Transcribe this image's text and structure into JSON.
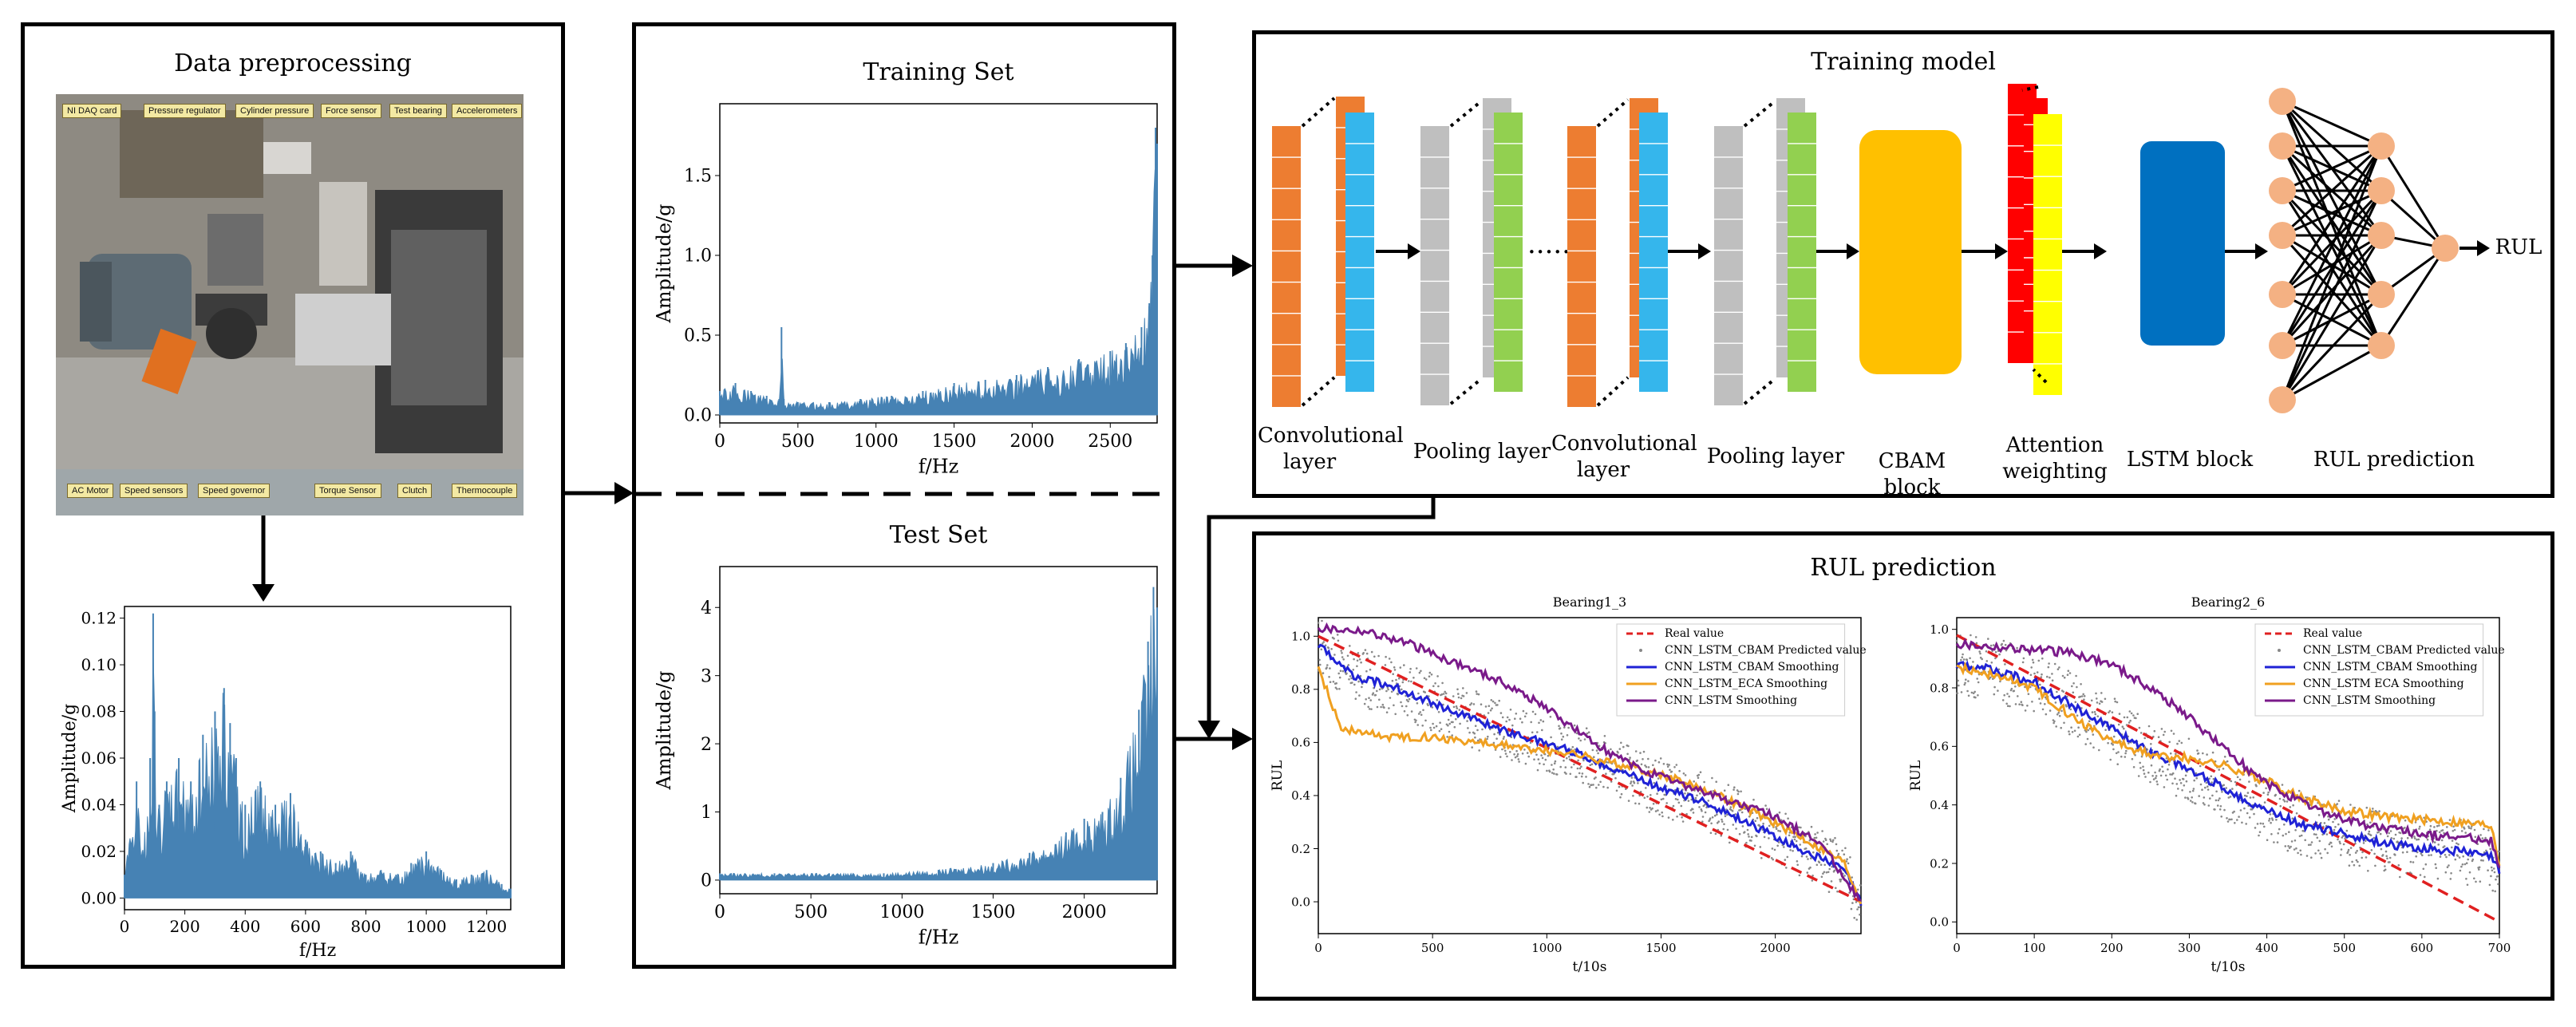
{
  "preprocessing": {
    "title": "Data preprocessing",
    "photo_labels": {
      "ni_daq": "NI DAQ card",
      "pressure_regulator": "Pressure regulator",
      "cylinder_pressure": "Cylinder pressure",
      "force_sensor": "Force sensor",
      "test_bearing": "Test bearing",
      "accelerometers": "Accelerometers",
      "ac_motor": "AC Motor",
      "speed_sensors": "Speed sensors",
      "speed_governor": "Speed governor",
      "torque_sensor": "Torque Sensor",
      "clutch": "Clutch",
      "thermocouple": "Thermocouple"
    }
  },
  "training_model": {
    "title": "Training model",
    "labels": {
      "conv1": "Convolutional layer",
      "pool1": "Pooling layer",
      "conv2": "Convolutional layer",
      "pool2": "Pooling layer",
      "cbam": "CBAM block",
      "attention": "Attention weighting",
      "lstm": "LSTM block",
      "rul_pred": "RUL prediction",
      "rul_out": "RUL",
      "dots": "······"
    },
    "colors": {
      "conv_orange": "#ed7d31",
      "conv_blue": "#35b6ec",
      "pool_grey": "#bfbfbf",
      "pool_green": "#92d050",
      "cbam": "#ffc000",
      "attn_red": "#ff0000",
      "attn_yellow": "#ffff00",
      "lstm": "#0070c0",
      "neuron": "#f4b183"
    }
  },
  "rul_panel": {
    "title": "RUL prediction"
  },
  "chart_data": [
    {
      "id": "spectrum_preprocessing",
      "type": "line",
      "title": "",
      "xlabel": "f/Hz",
      "ylabel": "Amplitude/g",
      "xlim": [
        0,
        1280
      ],
      "ylim": [
        -0.005,
        0.125
      ],
      "xticks": [
        0,
        200,
        400,
        600,
        800,
        1000,
        1200
      ],
      "yticks": [
        0.0,
        0.02,
        0.04,
        0.06,
        0.08,
        0.1,
        0.12
      ],
      "ytick_labels": [
        "0.00",
        "0.02",
        "0.04",
        "0.06",
        "0.08",
        "0.10",
        "0.12"
      ],
      "color": "#4682b4",
      "x": [
        0,
        40,
        60,
        85,
        95,
        100,
        115,
        140,
        180,
        220,
        260,
        300,
        330,
        350,
        370,
        400,
        450,
        500,
        550,
        600,
        650,
        700,
        750,
        800,
        850,
        900,
        950,
        1000,
        1050,
        1100,
        1150,
        1200,
        1250,
        1280
      ],
      "values": [
        0.01,
        0.05,
        0.02,
        0.06,
        0.122,
        0.08,
        0.04,
        0.05,
        0.06,
        0.05,
        0.07,
        0.08,
        0.09,
        0.075,
        0.06,
        0.04,
        0.05,
        0.04,
        0.045,
        0.025,
        0.02,
        0.015,
        0.02,
        0.01,
        0.012,
        0.01,
        0.015,
        0.02,
        0.012,
        0.008,
        0.01,
        0.012,
        0.006,
        0.004
      ]
    },
    {
      "id": "training_set",
      "type": "line",
      "title": "Training Set",
      "xlabel": "f/Hz",
      "ylabel": "Amplitude/g",
      "xlim": [
        0,
        2800
      ],
      "ylim": [
        -0.05,
        1.95
      ],
      "xticks": [
        0,
        500,
        1000,
        1500,
        2000,
        2500
      ],
      "yticks": [
        0.0,
        0.5,
        1.0,
        1.5
      ],
      "ytick_labels": [
        "0.0",
        "0.5",
        "1.0",
        "1.5"
      ],
      "color": "#4682b4",
      "x": [
        0,
        100,
        200,
        300,
        380,
        395,
        410,
        500,
        700,
        900,
        1100,
        1300,
        1500,
        1700,
        1900,
        2100,
        2300,
        2500,
        2600,
        2700,
        2750,
        2770,
        2790,
        2800
      ],
      "values": [
        0.15,
        0.2,
        0.15,
        0.12,
        0.1,
        0.55,
        0.1,
        0.08,
        0.08,
        0.1,
        0.12,
        0.15,
        0.2,
        0.22,
        0.25,
        0.3,
        0.35,
        0.4,
        0.45,
        0.55,
        0.7,
        1.0,
        1.8,
        1.7
      ]
    },
    {
      "id": "test_set",
      "type": "line",
      "title": "Test Set",
      "xlabel": "f/Hz",
      "ylabel": "Amplitude/g",
      "xlim": [
        0,
        2400
      ],
      "ylim": [
        -0.2,
        4.6
      ],
      "xticks": [
        0,
        500,
        1000,
        1500,
        2000
      ],
      "yticks": [
        0,
        1,
        2,
        3,
        4
      ],
      "ytick_labels": [
        "0",
        "1",
        "2",
        "3",
        "4"
      ],
      "color": "#4682b4",
      "x": [
        0,
        300,
        600,
        900,
        1200,
        1500,
        1700,
        1900,
        2000,
        2100,
        2200,
        2300,
        2350,
        2380,
        2400
      ],
      "values": [
        0.1,
        0.1,
        0.1,
        0.1,
        0.15,
        0.25,
        0.4,
        0.7,
        0.9,
        1.0,
        1.5,
        2.5,
        3.5,
        4.3,
        4.0
      ]
    },
    {
      "id": "bearing1_3",
      "type": "line",
      "title": "Bearing1_3",
      "xlabel": "t/10s",
      "ylabel": "RUL",
      "xlim": [
        0,
        2375
      ],
      "ylim": [
        -0.12,
        1.07
      ],
      "xticks": [
        0,
        500,
        1000,
        1500,
        2000
      ],
      "yticks": [
        0.0,
        0.2,
        0.4,
        0.6,
        0.8,
        1.0
      ],
      "ytick_labels": [
        "0.0",
        "0.2",
        "0.4",
        "0.6",
        "0.8",
        "1.0"
      ],
      "series": [
        {
          "name": "Real value",
          "color": "#e02020",
          "dash": "14,8",
          "x": [
            0,
            2375
          ],
          "values": [
            1.0,
            0.0
          ]
        },
        {
          "name": "CNN_LSTM_CBAM Predicted value",
          "color": "#888888",
          "kind": "scatter"
        },
        {
          "name": "CNN_LSTM_CBAM Smoothing",
          "color": "#1f22d6",
          "x": [
            0,
            150,
            300,
            500,
            700,
            900,
            1100,
            1300,
            1500,
            1700,
            1900,
            2100,
            2300,
            2375
          ],
          "values": [
            0.97,
            0.85,
            0.82,
            0.75,
            0.68,
            0.62,
            0.57,
            0.5,
            0.43,
            0.37,
            0.29,
            0.2,
            0.12,
            0.0
          ]
        },
        {
          "name": "CNN_LSTM_ECA Smoothing",
          "color": "#f0a020",
          "x": [
            0,
            100,
            300,
            500,
            700,
            900,
            1100,
            1300,
            1500,
            1700,
            1900,
            2100,
            2300,
            2375
          ],
          "values": [
            0.88,
            0.65,
            0.62,
            0.62,
            0.6,
            0.58,
            0.56,
            0.52,
            0.48,
            0.42,
            0.34,
            0.25,
            0.15,
            0.0
          ]
        },
        {
          "name": "CNN_LSTM Smoothing",
          "color": "#7a1a8a",
          "x": [
            0,
            200,
            400,
            600,
            800,
            1000,
            1200,
            1400,
            1600,
            1800,
            2000,
            2200,
            2375
          ],
          "values": [
            1.03,
            1.02,
            0.97,
            0.9,
            0.83,
            0.73,
            0.6,
            0.5,
            0.44,
            0.38,
            0.32,
            0.22,
            0.0
          ]
        }
      ]
    },
    {
      "id": "bearing2_6",
      "type": "line",
      "title": "Bearing2_6",
      "xlabel": "t/10s",
      "ylabel": "RUL",
      "xlim": [
        0,
        700
      ],
      "ylim": [
        -0.04,
        1.04
      ],
      "xticks": [
        0,
        100,
        200,
        300,
        400,
        500,
        600,
        700
      ],
      "yticks": [
        0.0,
        0.2,
        0.4,
        0.6,
        0.8,
        1.0
      ],
      "ytick_labels": [
        "0.0",
        "0.2",
        "0.4",
        "0.6",
        "0.8",
        "1.0"
      ],
      "series": [
        {
          "name": "Real value",
          "color": "#e02020",
          "dash": "14,8",
          "x": [
            0,
            700
          ],
          "values": [
            0.98,
            0.0
          ]
        },
        {
          "name": "CNN_LSTM_CBAM Predicted value",
          "color": "#888888",
          "kind": "scatter"
        },
        {
          "name": "CNN_LSTM_CBAM Smoothing",
          "color": "#1f22d6",
          "x": [
            0,
            50,
            100,
            150,
            200,
            250,
            300,
            350,
            400,
            450,
            500,
            550,
            600,
            650,
            690,
            700
          ],
          "values": [
            0.88,
            0.86,
            0.82,
            0.74,
            0.66,
            0.58,
            0.52,
            0.45,
            0.38,
            0.33,
            0.3,
            0.27,
            0.25,
            0.24,
            0.22,
            0.18
          ]
        },
        {
          "name": "CNN_LSTM ECA Smoothing",
          "color": "#f0a020",
          "x": [
            0,
            50,
            100,
            150,
            200,
            250,
            300,
            350,
            400,
            450,
            500,
            550,
            600,
            650,
            690,
            700
          ],
          "values": [
            0.87,
            0.84,
            0.8,
            0.7,
            0.62,
            0.57,
            0.56,
            0.53,
            0.48,
            0.42,
            0.38,
            0.36,
            0.35,
            0.34,
            0.33,
            0.2
          ]
        },
        {
          "name": "CNN_LSTM Smoothing",
          "color": "#7a1a8a",
          "x": [
            0,
            50,
            100,
            150,
            200,
            250,
            300,
            350,
            400,
            450,
            500,
            550,
            600,
            650,
            690,
            700
          ],
          "values": [
            0.95,
            0.94,
            0.93,
            0.92,
            0.88,
            0.8,
            0.7,
            0.58,
            0.47,
            0.4,
            0.35,
            0.32,
            0.3,
            0.29,
            0.28,
            0.18
          ]
        }
      ]
    }
  ]
}
